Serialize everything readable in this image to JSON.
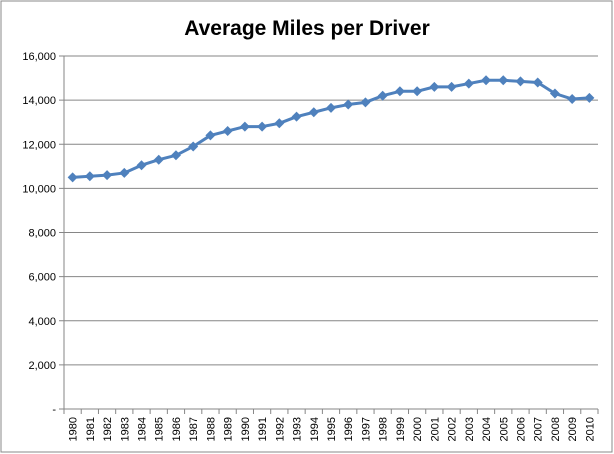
{
  "chart_data": {
    "type": "line",
    "title": "Average Miles per Driver",
    "xlabel": "",
    "ylabel": "",
    "ylim": [
      0,
      16000
    ],
    "yticks": [
      "-",
      "2,000",
      "4,000",
      "6,000",
      "8,000",
      "10,000",
      "12,000",
      "14,000",
      "16,000"
    ],
    "grid": true,
    "legend": "none",
    "marker": "diamond",
    "color": "#4F81BD",
    "categories": [
      "1980",
      "1981",
      "1982",
      "1983",
      "1984",
      "1985",
      "1986",
      "1987",
      "1988",
      "1989",
      "1990",
      "1991",
      "1992",
      "1993",
      "1994",
      "1995",
      "1996",
      "1997",
      "1998",
      "1999",
      "2000",
      "2001",
      "2002",
      "2003",
      "2004",
      "2005",
      "2006",
      "2007",
      "2008",
      "2009",
      "2010"
    ],
    "values": [
      10500,
      10550,
      10600,
      10700,
      11050,
      11300,
      11500,
      11900,
      12400,
      12600,
      12800,
      12800,
      12950,
      13250,
      13450,
      13650,
      13800,
      13900,
      14200,
      14400,
      14400,
      14600,
      14600,
      14750,
      14900,
      14900,
      14850,
      14800,
      14300,
      14050,
      14100
    ]
  }
}
